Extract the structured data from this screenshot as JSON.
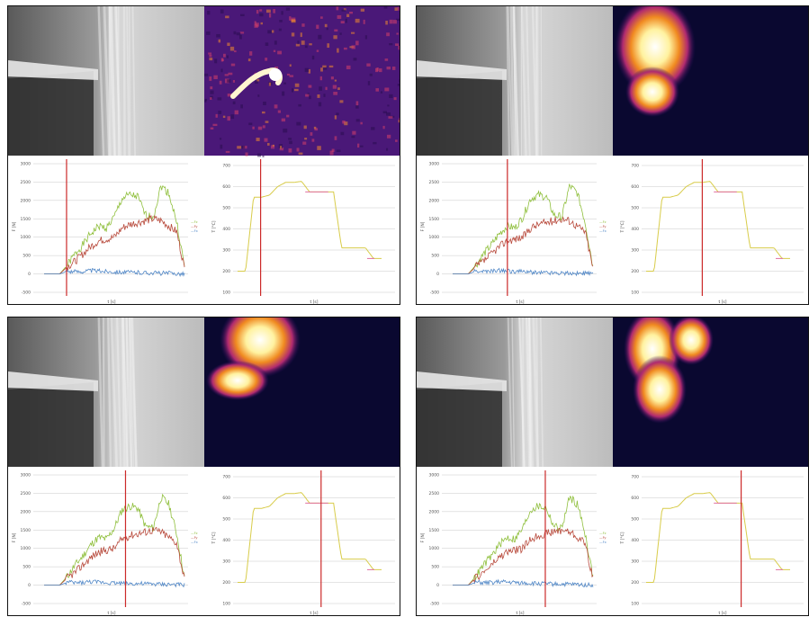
{
  "colors": {
    "force_green": "#8fbf3c",
    "force_red": "#b84a3c",
    "force_blue": "#4f86c6",
    "cursor": "#cc2a2a",
    "temp_yellow": "#d8cc4a",
    "temp_pink": "#e070a0",
    "grid": "#c8c8c8"
  },
  "panels": [
    {
      "cursor_time_fraction": 0.16,
      "thermal": "spark",
      "force_chart": {
        "type": "line",
        "yticks": [
          "3000",
          "2500",
          "2000",
          "1500",
          "1000",
          "500",
          "0",
          "-500"
        ],
        "ylabel": "F [N]",
        "xlabel": "t [s]",
        "legend": [
          "—Fz",
          "—Fy",
          "—Fx"
        ]
      },
      "temp_chart": {
        "type": "line",
        "yticks": [
          "700",
          "600",
          "500",
          "400",
          "300",
          "200",
          "100"
        ],
        "ylabel": "T [°C]",
        "xlabel": "t [s]"
      }
    },
    {
      "cursor_time_fraction": 0.39,
      "thermal": "hot-upper-left",
      "force_chart": {
        "type": "line",
        "yticks": [
          "3000",
          "2500",
          "2000",
          "1500",
          "1000",
          "500",
          "0",
          "-500"
        ],
        "ylabel": "F [N]",
        "xlabel": "t [s]",
        "legend": [
          "—Fz",
          "—Fy",
          "—Fx"
        ]
      },
      "temp_chart": {
        "type": "line",
        "yticks": [
          "700",
          "600",
          "500",
          "400",
          "300",
          "200",
          "100"
        ],
        "ylabel": "T [°C]",
        "xlabel": "t [s]"
      }
    },
    {
      "cursor_time_fraction": 0.58,
      "thermal": "hot-top",
      "force_chart": {
        "type": "line",
        "yticks": [
          "3000",
          "2500",
          "2000",
          "1500",
          "1000",
          "500",
          "0",
          "-500"
        ],
        "ylabel": "F [N]",
        "xlabel": "t [s]",
        "legend": [
          "—Fz",
          "—Fy",
          "—Fx"
        ]
      },
      "temp_chart": {
        "type": "line",
        "yticks": [
          "700",
          "600",
          "500",
          "400",
          "300",
          "200",
          "100"
        ],
        "ylabel": "T [°C]",
        "xlabel": "t [s]"
      }
    },
    {
      "cursor_time_fraction": 0.66,
      "thermal": "hot-curl",
      "force_chart": {
        "type": "line",
        "yticks": [
          "3000",
          "2500",
          "2000",
          "1500",
          "1000",
          "500",
          "0",
          "-500"
        ],
        "ylabel": "F [N]",
        "xlabel": "t [s]",
        "legend": [
          "—Fz",
          "—Fy",
          "—Fx"
        ]
      },
      "temp_chart": {
        "type": "line",
        "yticks": [
          "700",
          "600",
          "500",
          "400",
          "300",
          "200",
          "100"
        ],
        "ylabel": "T [°C]",
        "xlabel": "t [s]"
      }
    }
  ],
  "chart_data": [
    {
      "type": "line",
      "ylim": [
        -500,
        3000
      ],
      "series": [
        {
          "name": "Fz",
          "values": [
            0,
            0,
            0,
            250,
            550,
            800,
            1100,
            1300,
            1250,
            1550,
            2050,
            2150,
            2100,
            1600,
            1550,
            2400,
            2200,
            1400,
            200
          ]
        },
        {
          "name": "Fy",
          "values": [
            0,
            0,
            0,
            200,
            350,
            550,
            750,
            900,
            950,
            1000,
            1250,
            1350,
            1400,
            1450,
            1500,
            1450,
            1300,
            1150,
            150
          ]
        },
        {
          "name": "Fx",
          "values": [
            0,
            0,
            0,
            80,
            60,
            70,
            90,
            80,
            70,
            60,
            50,
            40,
            40,
            30,
            30,
            20,
            20,
            10,
            0
          ]
        }
      ]
    },
    {
      "type": "line",
      "ylim": [
        100,
        700
      ],
      "series": [
        {
          "name": "",
          "values": [
            200,
            200,
            550,
            550,
            560,
            600,
            620,
            620,
            625,
            575,
            575,
            575,
            575,
            310,
            310,
            310,
            310,
            260,
            260
          ]
        }
      ]
    }
  ]
}
